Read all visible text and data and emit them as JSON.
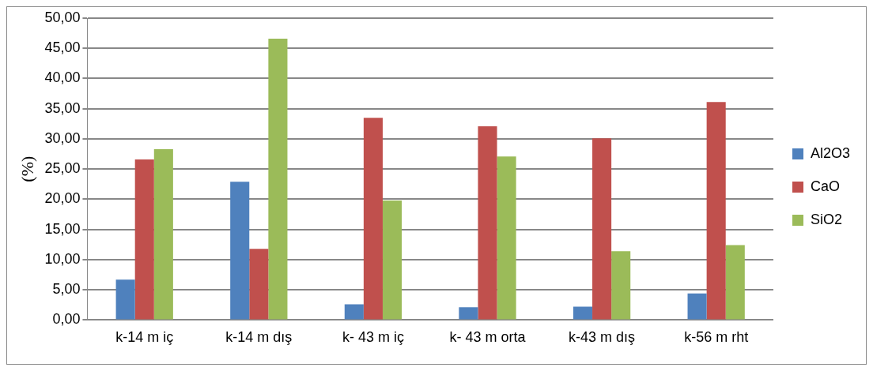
{
  "chart_data": {
    "type": "bar",
    "ylabel": "(%)",
    "categories": [
      "k-14 m iç",
      "k-14 m dış",
      "k- 43 m iç",
      "k- 43 m orta",
      "k-43 m dış",
      "k-56 m rht"
    ],
    "series": [
      {
        "name": "Al2O3",
        "color": "#4f81bd",
        "values": [
          6.7,
          22.9,
          2.6,
          2.1,
          2.2,
          4.4
        ]
      },
      {
        "name": "CaO",
        "color": "#c0504d",
        "values": [
          26.6,
          11.8,
          33.5,
          32.1,
          30.1,
          36.1
        ]
      },
      {
        "name": "SiO2",
        "color": "#9bbb59",
        "values": [
          28.3,
          46.6,
          19.8,
          27.1,
          11.4,
          12.4
        ]
      }
    ],
    "ylim": [
      0,
      50
    ],
    "yticks": [
      {
        "value": 0,
        "label": "0,00"
      },
      {
        "value": 5,
        "label": "5,00"
      },
      {
        "value": 10,
        "label": "10,00"
      },
      {
        "value": 15,
        "label": "15,00"
      },
      {
        "value": 20,
        "label": "20,00"
      },
      {
        "value": 25,
        "label": "25,00"
      },
      {
        "value": 30,
        "label": "30,00"
      },
      {
        "value": 35,
        "label": "35,00"
      },
      {
        "value": 40,
        "label": "40,00"
      },
      {
        "value": 45,
        "label": "45,00"
      },
      {
        "value": 50,
        "label": "50,00"
      }
    ],
    "grid": "y",
    "legend": "right"
  }
}
